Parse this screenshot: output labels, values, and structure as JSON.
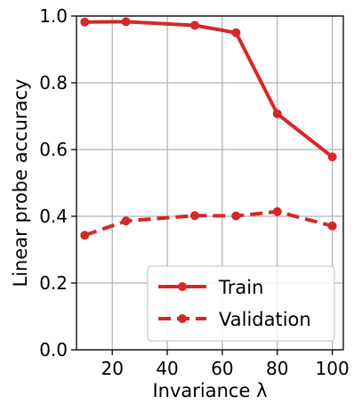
{
  "chart_data": {
    "type": "line",
    "title": "",
    "xlabel": "Invariance λ",
    "ylabel": "Linear probe accuracy",
    "xlim": [
      7,
      104
    ],
    "ylim": [
      0.0,
      1.0
    ],
    "xticks": [
      20,
      40,
      60,
      80,
      100
    ],
    "xtick_labels": [
      "20",
      "40",
      "60",
      "80",
      "100"
    ],
    "yticks": [
      0.0,
      0.2,
      0.4,
      0.6,
      0.8,
      1.0
    ],
    "ytick_labels": [
      "0.0",
      "0.2",
      "0.4",
      "0.6",
      "0.8",
      "1.0"
    ],
    "grid": true,
    "legend_position": "bottom-right",
    "x": [
      10,
      25,
      50,
      65,
      80,
      100
    ],
    "series": [
      {
        "name": "Train",
        "style": "solid",
        "color": "#d62728",
        "values": [
          0.982,
          0.983,
          0.972,
          0.95,
          0.707,
          0.578
        ]
      },
      {
        "name": "Validation",
        "style": "dashed",
        "color": "#d62728",
        "values": [
          0.343,
          0.386,
          0.402,
          0.401,
          0.414,
          0.371
        ]
      }
    ]
  }
}
